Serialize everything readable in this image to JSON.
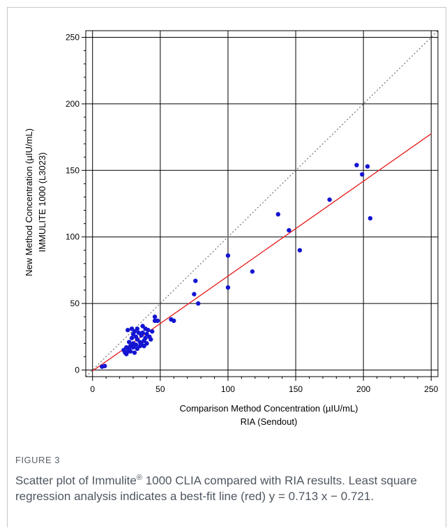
{
  "chart_data": {
    "type": "scatter",
    "xlabel": "Comparison Method Concentration (µIU/mL)",
    "xlabel2": "RIA (Sendout)",
    "ylabel": "New Method Concentration (µIU/mL)",
    "ylabel2": "IMMULITE 1000 (L3023)",
    "xlim": [
      -5,
      255
    ],
    "ylim": [
      -5,
      255
    ],
    "xticks": [
      "0",
      "50",
      "100",
      "150",
      "200",
      "250"
    ],
    "yticks": [
      "0",
      "50",
      "100",
      "150",
      "200",
      "250"
    ],
    "grid": true,
    "colors": {
      "points": "#1414d2",
      "regression": "#e51b1b",
      "identity": "#707070"
    },
    "regression": {
      "slope": 0.713,
      "intercept": -0.721
    },
    "points": [
      [
        7,
        2.5
      ],
      [
        9,
        3
      ],
      [
        23,
        15
      ],
      [
        24,
        13
      ],
      [
        25,
        17
      ],
      [
        25,
        12
      ],
      [
        26,
        14
      ],
      [
        26,
        30
      ],
      [
        27,
        16
      ],
      [
        27,
        21
      ],
      [
        28,
        18
      ],
      [
        28,
        14
      ],
      [
        29,
        24
      ],
      [
        29,
        31
      ],
      [
        30,
        17
      ],
      [
        30,
        27
      ],
      [
        30,
        20
      ],
      [
        31,
        13
      ],
      [
        31,
        29
      ],
      [
        32,
        19
      ],
      [
        32,
        25
      ],
      [
        33,
        23
      ],
      [
        33,
        16
      ],
      [
        33,
        31
      ],
      [
        34,
        28
      ],
      [
        35,
        21
      ],
      [
        35,
        18
      ],
      [
        36,
        26
      ],
      [
        36,
        20
      ],
      [
        37,
        28
      ],
      [
        37,
        33
      ],
      [
        38,
        22
      ],
      [
        38,
        18
      ],
      [
        39,
        31
      ],
      [
        39,
        24
      ],
      [
        40,
        27
      ],
      [
        40,
        20
      ],
      [
        41,
        30
      ],
      [
        42,
        25
      ],
      [
        43,
        23
      ],
      [
        44,
        29
      ],
      [
        46,
        40
      ],
      [
        46,
        37
      ],
      [
        48,
        37
      ],
      [
        58,
        38
      ],
      [
        60,
        37
      ],
      [
        75,
        57
      ],
      [
        76,
        67
      ],
      [
        78,
        50
      ],
      [
        100,
        62
      ],
      [
        100,
        86
      ],
      [
        118,
        74
      ],
      [
        137,
        117
      ],
      [
        145,
        105
      ],
      [
        153,
        90
      ],
      [
        175,
        128
      ],
      [
        195,
        154
      ],
      [
        199,
        147
      ],
      [
        203,
        153
      ],
      [
        205,
        114
      ]
    ]
  },
  "caption": {
    "label": "FIGURE 3",
    "line1_pre": "Scatter plot of Immulite",
    "line1_sup": "®",
    "line1_post": " 1000 CLIA compared with RIA results. Least square regression analysis indicates a best-fit line (red) y = 0.713 x − 0.721."
  }
}
